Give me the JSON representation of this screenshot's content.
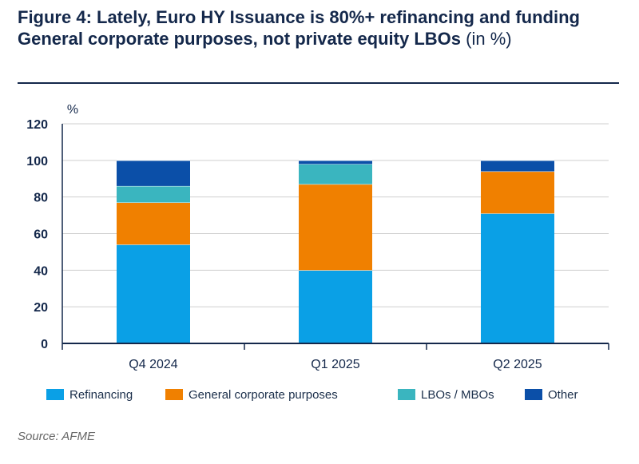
{
  "title": {
    "main": "Figure 4: Lately, Euro HY Issuance is 80%+ refinancing and funding General corporate purposes, not private equity LBOs",
    "unit": "(in %)"
  },
  "source": "Source: AFME",
  "chart_data": {
    "type": "bar",
    "stacked": true,
    "title": "Figure 4: Lately, Euro HY Issuance is 80%+ refinancing and funding General corporate purposes, not private equity LBOs (in %)",
    "xlabel": "",
    "ylabel": "%",
    "ylim": [
      0,
      120
    ],
    "yticks": [
      0,
      20,
      40,
      60,
      80,
      100,
      120
    ],
    "grid": true,
    "legend_position": "bottom",
    "categories": [
      "Q4 2024",
      "Q1 2025",
      "Q2 2025"
    ],
    "series": [
      {
        "name": "Refinancing",
        "color": "#0aa0e6",
        "values": [
          54,
          40,
          71
        ]
      },
      {
        "name": "General corporate purposes",
        "color": "#f08000",
        "values": [
          23,
          47,
          23
        ]
      },
      {
        "name": "LBOs / MBOs",
        "color": "#3ab5bf",
        "values": [
          9,
          11,
          0
        ]
      },
      {
        "name": "Other",
        "color": "#0b4fa8",
        "values": [
          14,
          2,
          6
        ]
      }
    ]
  }
}
